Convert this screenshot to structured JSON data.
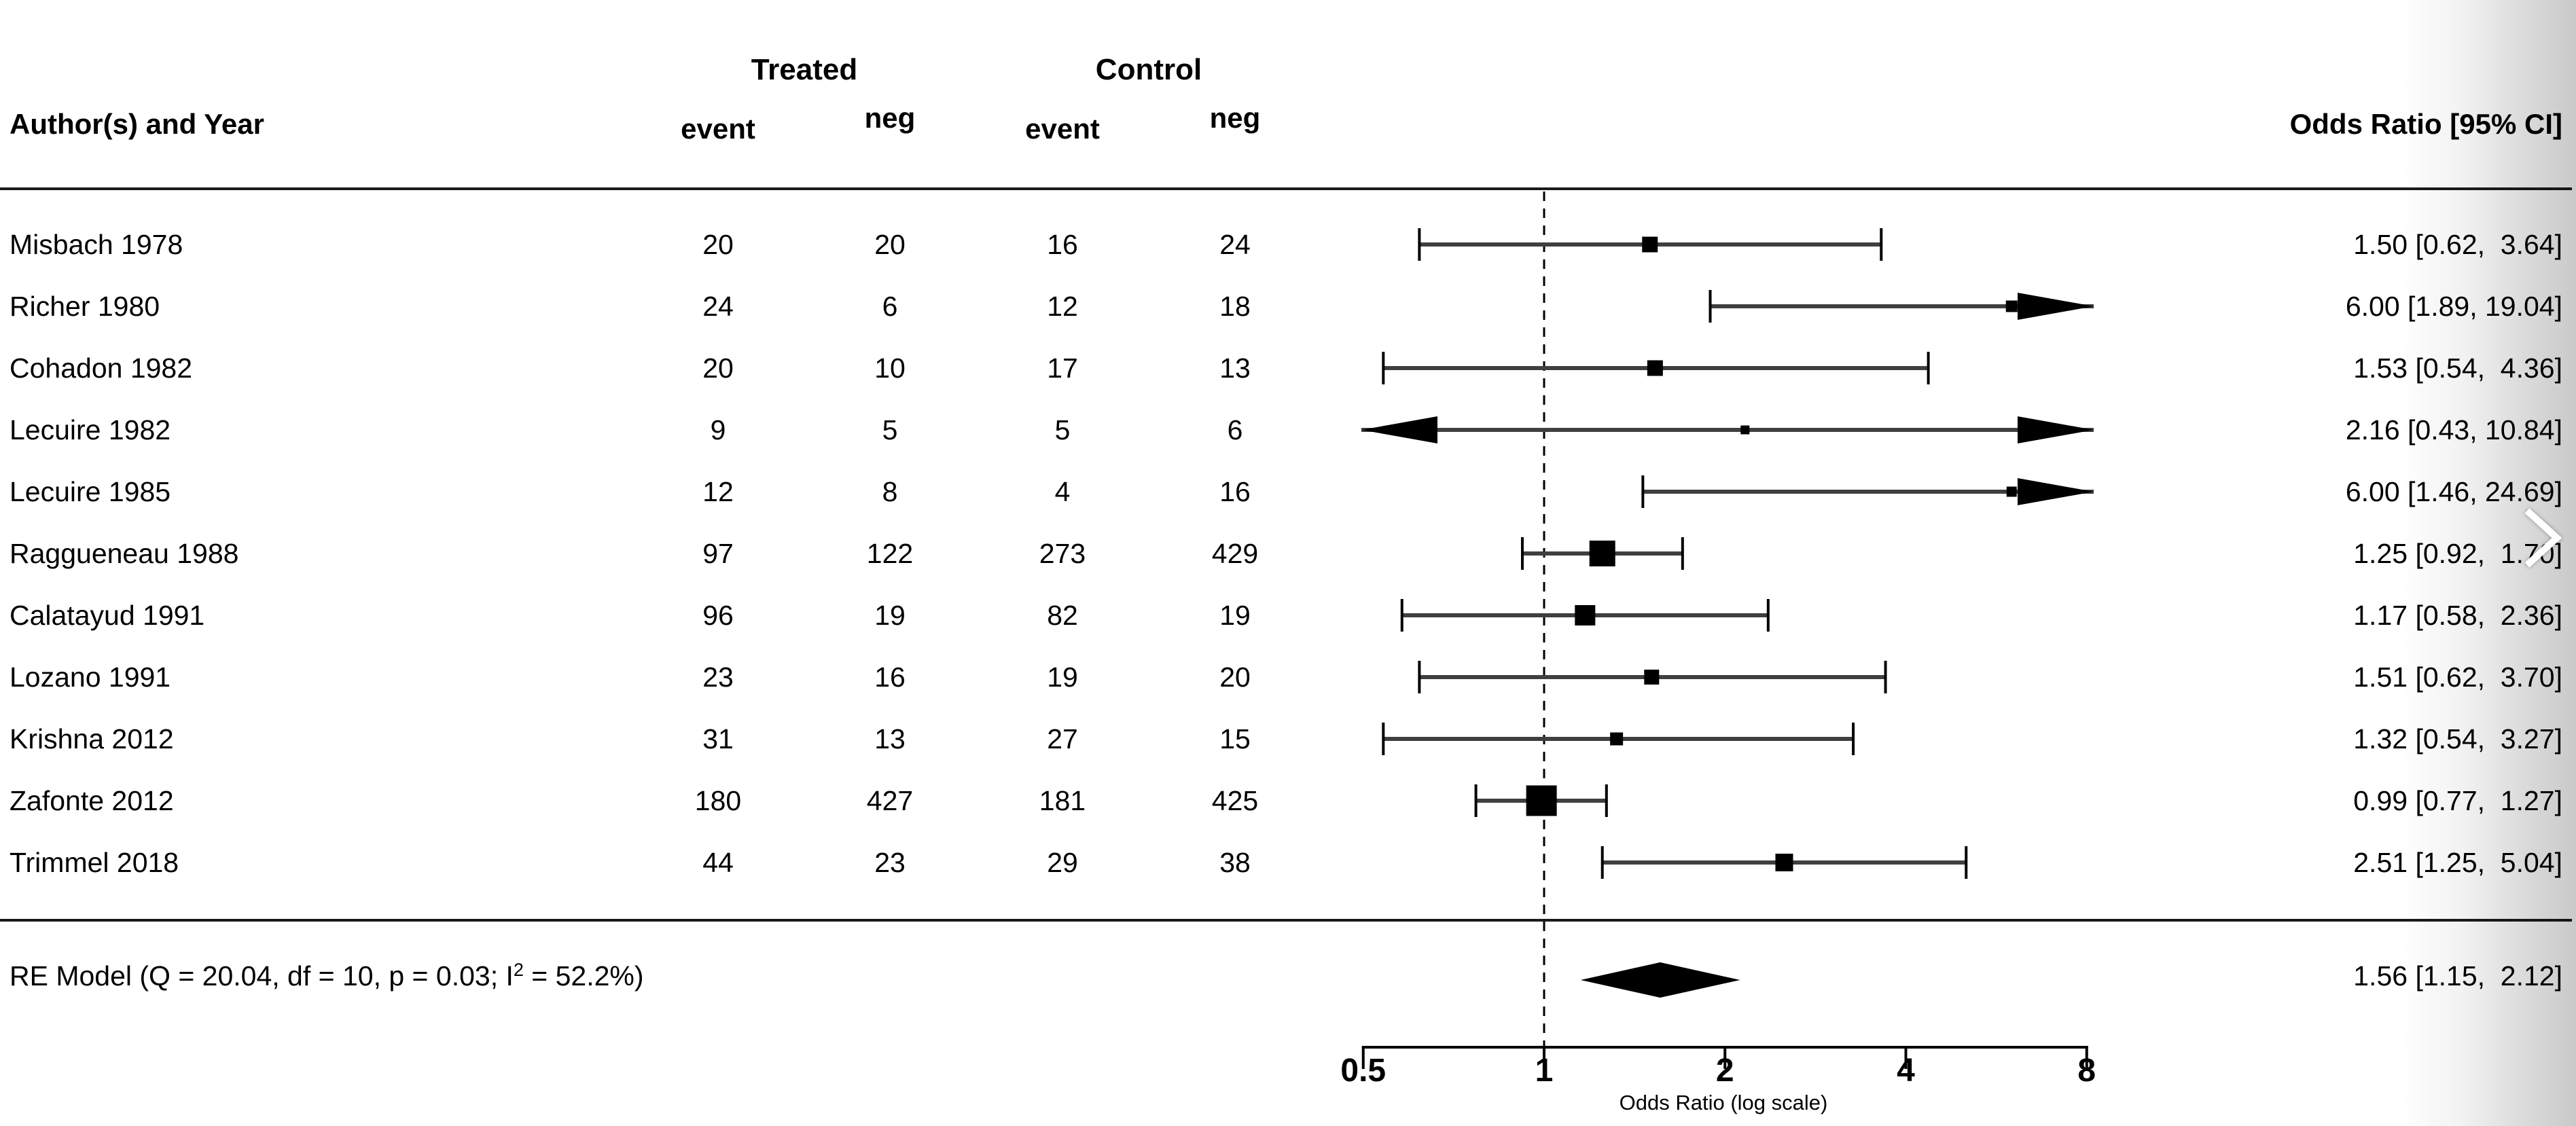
{
  "header": {
    "author_col": "Author(s) and Year",
    "treated_group": "Treated",
    "control_group": "Control",
    "event_label": "event",
    "neg_label": "neg",
    "or_col": "Odds Ratio [95% CI]"
  },
  "colors": {
    "ci_line": "#3f3f3f",
    "marker": "#000000",
    "separator": "#1a1a1a",
    "axis": "#000000"
  },
  "icons": {
    "next_chevron": "chevron-right"
  },
  "chart_data": {
    "type": "forest",
    "x_axis": {
      "label": "Odds Ratio (log scale)",
      "scale": "log2",
      "ticks": [
        0.5,
        1,
        2,
        4,
        8
      ],
      "tick_labels": [
        "0.5",
        "1",
        "2",
        "4",
        "8"
      ],
      "reference_line": 1
    },
    "studies": [
      {
        "author": "Misbach 1978",
        "treated_event": "20",
        "treated_neg": "20",
        "control_event": "16",
        "control_neg": "24",
        "or": 1.5,
        "ci_low": 0.62,
        "ci_high": 3.64,
        "or_label": "1.50 [0.62,  3.64]",
        "square": 23
      },
      {
        "author": "Richer 1980",
        "treated_event": "24",
        "treated_neg": "6",
        "control_event": "12",
        "control_neg": "18",
        "or": 6.0,
        "ci_low": 1.89,
        "ci_high": 19.04,
        "or_label": "6.00 [1.89, 19.04]",
        "square": 17
      },
      {
        "author": "Cohadon 1982",
        "treated_event": "20",
        "treated_neg": "10",
        "control_event": "17",
        "control_neg": "13",
        "or": 1.53,
        "ci_low": 0.54,
        "ci_high": 4.36,
        "or_label": "1.53 [0.54,  4.36]",
        "square": 23
      },
      {
        "author": "Lecuire 1982",
        "treated_event": "9",
        "treated_neg": "5",
        "control_event": "5",
        "control_neg": "6",
        "or": 2.16,
        "ci_low": 0.43,
        "ci_high": 10.84,
        "or_label": "2.16 [0.43, 10.84]",
        "square": 13
      },
      {
        "author": "Lecuire 1985",
        "treated_event": "12",
        "treated_neg": "8",
        "control_event": "4",
        "control_neg": "16",
        "or": 6.0,
        "ci_low": 1.46,
        "ci_high": 24.69,
        "or_label": "6.00 [1.46, 24.69]",
        "square": 15
      },
      {
        "author": "Raggueneau 1988",
        "treated_event": "97",
        "treated_neg": "122",
        "control_event": "273",
        "control_neg": "429",
        "or": 1.25,
        "ci_low": 0.92,
        "ci_high": 1.7,
        "or_label": "1.25 [0.92,  1.70]",
        "square": 38
      },
      {
        "author": "Calatayud 1991",
        "treated_event": "96",
        "treated_neg": "19",
        "control_event": "82",
        "control_neg": "19",
        "or": 1.17,
        "ci_low": 0.58,
        "ci_high": 2.36,
        "or_label": "1.17 [0.58,  2.36]",
        "square": 30
      },
      {
        "author": "Lozano 1991",
        "treated_event": "23",
        "treated_neg": "16",
        "control_event": "19",
        "control_neg": "20",
        "or": 1.51,
        "ci_low": 0.62,
        "ci_high": 3.7,
        "or_label": "1.51 [0.62,  3.70]",
        "square": 22
      },
      {
        "author": "Krishna 2012",
        "treated_event": "31",
        "treated_neg": "13",
        "control_event": "27",
        "control_neg": "15",
        "or": 1.32,
        "ci_low": 0.54,
        "ci_high": 3.27,
        "or_label": "1.32 [0.54,  3.27]",
        "square": 19
      },
      {
        "author": "Zafonte 2012",
        "treated_event": "180",
        "treated_neg": "427",
        "control_event": "181",
        "control_neg": "425",
        "or": 0.99,
        "ci_low": 0.77,
        "ci_high": 1.27,
        "or_label": "0.99 [0.77,  1.27]",
        "square": 45
      },
      {
        "author": "Trimmel 2018",
        "treated_event": "44",
        "treated_neg": "23",
        "control_event": "29",
        "control_neg": "38",
        "or": 2.51,
        "ci_low": 1.25,
        "ci_high": 5.04,
        "or_label": "2.51 [1.25,  5.04]",
        "square": 26
      }
    ],
    "summary": {
      "label_prefix": "RE Model (Q = 20.04, df = 10, p = 0.03; I",
      "label_sup": "2",
      "label_suffix": " = 52.2%)",
      "heterogeneity": {
        "Q": "20.04",
        "df": "10",
        "p": "0.03",
        "I2": "52.2%"
      },
      "or": 1.56,
      "ci_low": 1.15,
      "ci_high": 2.12,
      "or_label": "1.56 [1.15,  2.12]"
    }
  }
}
